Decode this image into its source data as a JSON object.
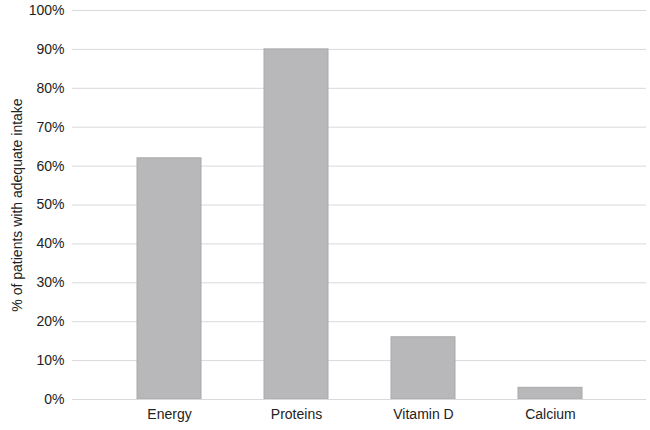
{
  "chart_data": {
    "type": "bar",
    "y_label": "% of patients with adequate intake",
    "categories": [
      "Energy",
      "Proteins",
      "Vitamin D",
      "Calcium"
    ],
    "values": [
      62,
      90,
      16,
      3
    ],
    "color": "#b8b8ba",
    "ylim": [
      0,
      100
    ],
    "yticks": [
      {
        "value": 0,
        "label": "0%"
      },
      {
        "value": 10,
        "label": "10%"
      },
      {
        "value": 20,
        "label": "20%"
      },
      {
        "value": 30,
        "label": "30%"
      },
      {
        "value": 40,
        "label": "40%"
      },
      {
        "value": 50,
        "label": "50%"
      },
      {
        "value": 60,
        "label": "60%"
      },
      {
        "value": 70,
        "label": "70%"
      },
      {
        "value": 80,
        "label": "80%"
      },
      {
        "value": 90,
        "label": "90%"
      },
      {
        "value": 100,
        "label": "100%"
      }
    ],
    "grid": true
  }
}
